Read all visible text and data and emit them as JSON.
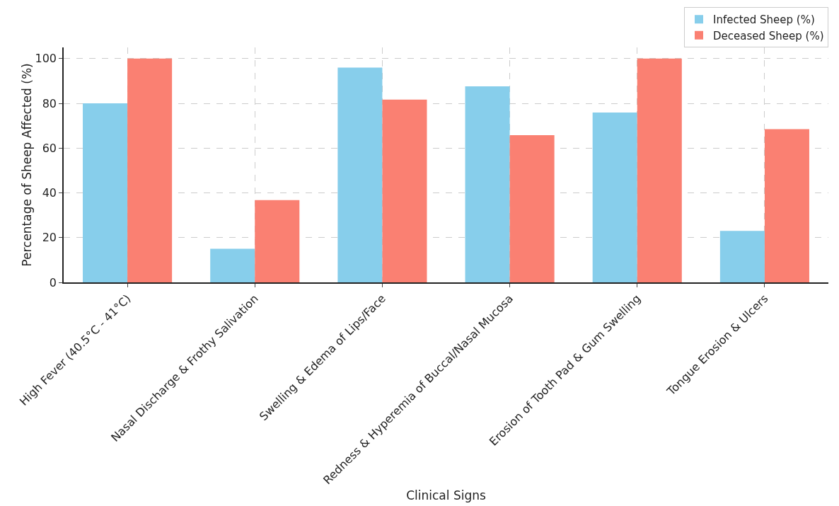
{
  "chart_data": {
    "type": "bar",
    "xlabel": "Clinical Signs",
    "ylabel": "Percentage of Sheep Affected (%)",
    "categories": [
      "High Fever (40.5°C - 41°C)",
      "Nasal Discharge & Frothy Salivation",
      "Swelling & Edema of Lips/Face",
      "Redness & Hyperemia of Buccal/Nasal Mucosa",
      "Erosion of Tooth Pad & Gum Swelling",
      "Tongue Erosion & Ulcers"
    ],
    "series": [
      {
        "name": "Infected Sheep (%)",
        "color": "#87ceeb",
        "values": [
          80,
          15,
          96,
          87.6,
          75.9,
          23
        ]
      },
      {
        "name": "Deceased Sheep (%)",
        "color": "#fa8072",
        "values": [
          100,
          36.8,
          81.7,
          65.8,
          100,
          68.5
        ]
      }
    ],
    "ylim": [
      0,
      105
    ],
    "yticks": [
      0,
      20,
      40,
      60,
      80,
      100
    ],
    "grid": true,
    "legend": "top right"
  }
}
